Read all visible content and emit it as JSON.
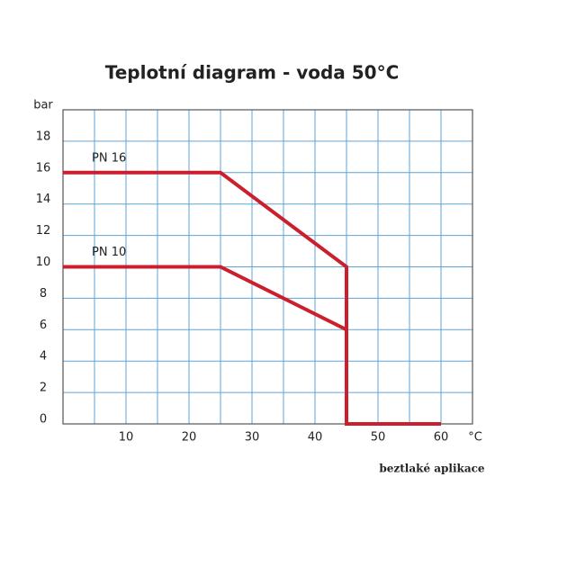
{
  "chart_data": {
    "type": "line",
    "title": "Teplotní diagram - voda 50°C",
    "y_label": "bar",
    "x_label": "°C",
    "annotation": "beztlaké aplikace",
    "series": [
      {
        "name": "PN 16",
        "color": "#cc1f2d",
        "x": [
          0,
          25,
          45,
          45,
          60
        ],
        "values": [
          16,
          16,
          10,
          0,
          0
        ]
      },
      {
        "name": "PN 10",
        "color": "#cc1f2d",
        "x": [
          0,
          25,
          45
        ],
        "values": [
          10,
          10,
          6
        ]
      }
    ],
    "xlim": [
      0,
      65
    ],
    "ylim": [
      0,
      20
    ],
    "xticks": [
      10,
      20,
      30,
      40,
      50,
      60
    ],
    "x_grid": [
      5,
      10,
      15,
      20,
      25,
      30,
      35,
      40,
      45,
      50,
      55,
      60
    ],
    "yticks": [
      0,
      2,
      4,
      6,
      8,
      10,
      12,
      14,
      16,
      18
    ],
    "grid": true,
    "grid_color": "#5fa3d6"
  }
}
